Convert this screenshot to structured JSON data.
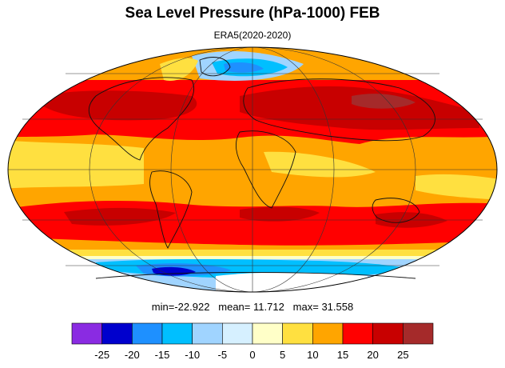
{
  "title": "Sea Level Pressure (hPa-1000) FEB",
  "subtitle": "ERA5(2020-2020)",
  "stats": {
    "min_label": "min=",
    "min": "-22.922",
    "mean_label": "mean=",
    "mean": "11.712",
    "max_label": "max=",
    "max": "31.558"
  },
  "colorbar": {
    "colors": [
      "#8a2be2",
      "#0000cd",
      "#1e90ff",
      "#00bfff",
      "#a0d4ff",
      "#d6f0ff",
      "#ffffc8",
      "#ffe040",
      "#ffa500",
      "#ff0000",
      "#c80000",
      "#a52a2a"
    ],
    "tick_labels": [
      "-25",
      "-20",
      "-15",
      "-10",
      "-5",
      "0",
      "5",
      "10",
      "15",
      "20",
      "25"
    ]
  },
  "legend_levels": [
    -25,
    -20,
    -15,
    -10,
    -5,
    0,
    5,
    10,
    15,
    20,
    25
  ]
}
